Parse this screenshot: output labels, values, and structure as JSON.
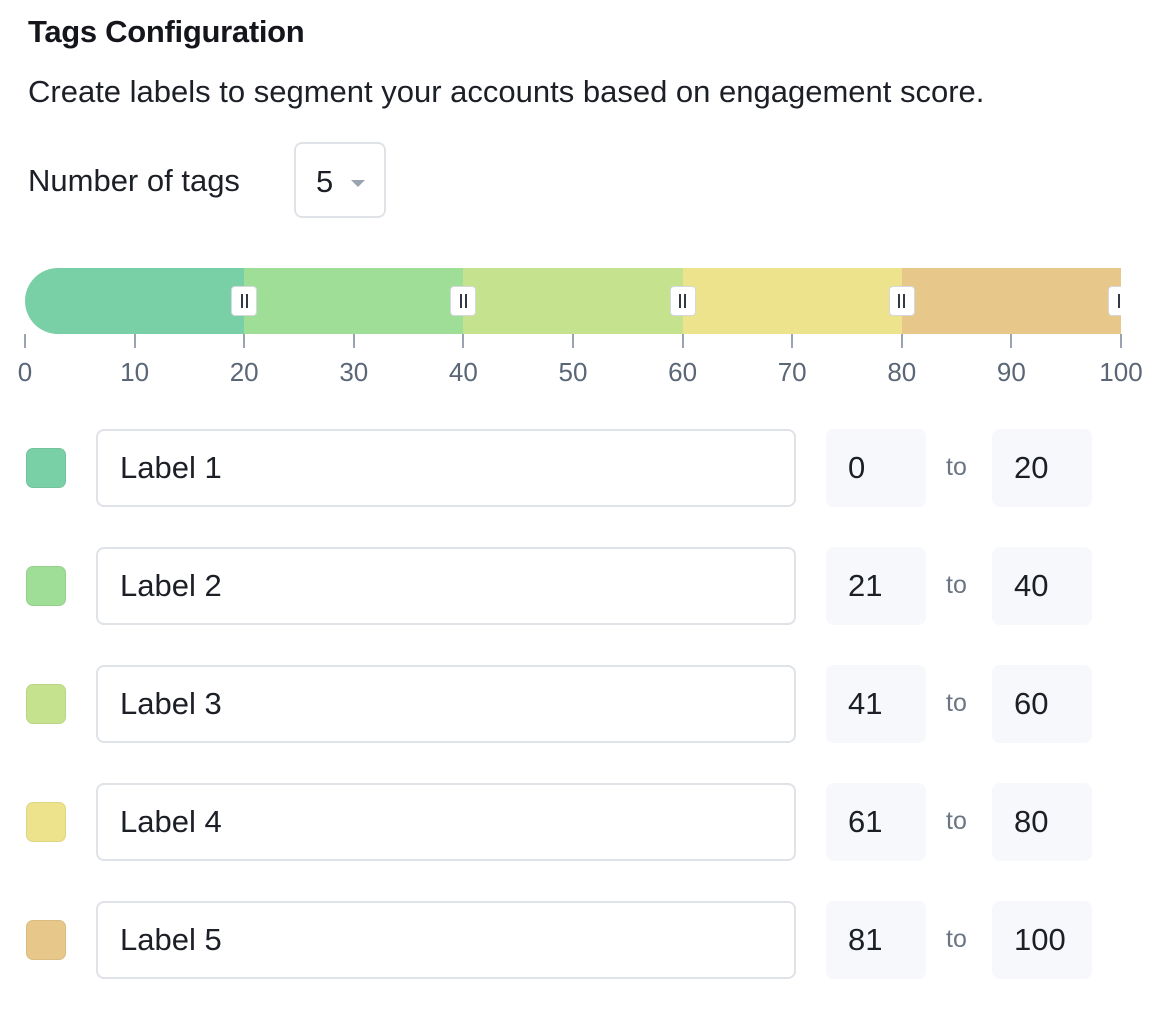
{
  "header": {
    "title": "Tags Configuration",
    "subtitle": "Create labels to segment your accounts based on engagement score."
  },
  "count": {
    "label": "Number of tags",
    "value": "5"
  },
  "slider": {
    "min": 0,
    "max": 100,
    "ticks": [
      "0",
      "10",
      "20",
      "30",
      "40",
      "50",
      "60",
      "70",
      "80",
      "90",
      "100"
    ],
    "segments": [
      {
        "start": 0,
        "end": 20,
        "color": "#7ad0a6"
      },
      {
        "start": 20,
        "end": 40,
        "color": "#9fde96"
      },
      {
        "start": 40,
        "end": 60,
        "color": "#c5e38e"
      },
      {
        "start": 60,
        "end": 80,
        "color": "#ece38c"
      },
      {
        "start": 80,
        "end": 100,
        "color": "#e8c78a"
      }
    ]
  },
  "tags": [
    {
      "label": "Label 1",
      "from": "0",
      "to_word": "to",
      "to": "20",
      "color": "#7ad0a6"
    },
    {
      "label": "Label 2",
      "from": "21",
      "to_word": "to",
      "to": "40",
      "color": "#9fde96"
    },
    {
      "label": "Label 3",
      "from": "41",
      "to_word": "to",
      "to": "60",
      "color": "#c5e38e"
    },
    {
      "label": "Label 4",
      "from": "61",
      "to_word": "to",
      "to": "80",
      "color": "#ece38c"
    },
    {
      "label": "Label 5",
      "from": "81",
      "to_word": "to",
      "to": "100",
      "color": "#e8c78a"
    }
  ]
}
